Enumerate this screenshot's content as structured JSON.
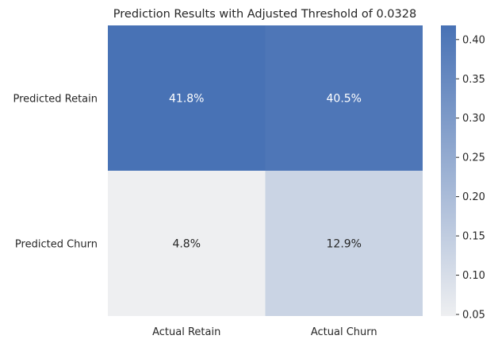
{
  "chart_data": {
    "type": "heatmap",
    "title": "Prediction Results with Adjusted Threshold of 0.0328",
    "x_categories": [
      "Actual Retain",
      "Actual Churn"
    ],
    "y_categories": [
      "Predicted Retain",
      "Predicted Churn"
    ],
    "values": [
      [
        0.418,
        0.405
      ],
      [
        0.048,
        0.129
      ]
    ],
    "cell_labels": [
      [
        "41.8%",
        "40.5%"
      ],
      [
        "4.8%",
        "12.9%"
      ]
    ],
    "colorbar": {
      "vmin": 0.048,
      "vmax": 0.418,
      "ticks": [
        "0.05",
        "0.10",
        "0.15",
        "0.20",
        "0.25",
        "0.30",
        "0.35",
        "0.40"
      ]
    },
    "colors": {
      "low": "#eeeff1",
      "high": "#4872b5"
    },
    "grid": false
  }
}
